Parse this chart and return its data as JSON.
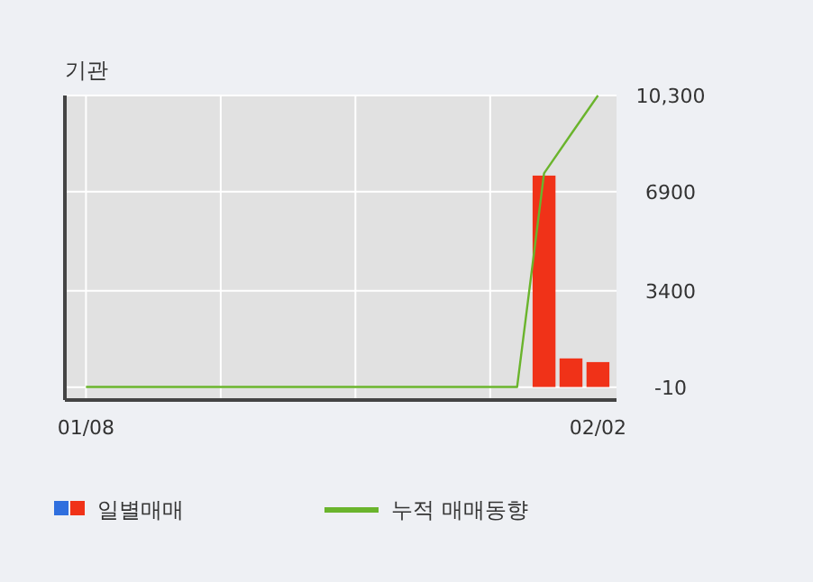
{
  "chart_data": {
    "type": "bar",
    "title": "기관",
    "categories": [
      "01/08",
      null,
      null,
      null,
      null,
      null,
      null,
      null,
      null,
      null,
      null,
      null,
      null,
      null,
      null,
      null,
      null,
      null,
      null,
      "02/02"
    ],
    "series": [
      {
        "name": "일별매매",
        "color": "#f03218",
        "values": [
          0,
          0,
          0,
          0,
          0,
          0,
          0,
          0,
          0,
          0,
          0,
          0,
          0,
          0,
          0,
          0,
          0,
          7470,
          1010,
          880
        ]
      },
      {
        "name": "누적 매매동향",
        "type": "line",
        "color": "#6ab42c",
        "values": [
          0,
          0,
          0,
          0,
          0,
          0,
          0,
          0,
          0,
          0,
          0,
          0,
          0,
          0,
          0,
          0,
          0,
          7550,
          8930,
          10300
        ]
      }
    ],
    "ylim": [
      -460,
      10300
    ],
    "yticks": [
      -10,
      3400,
      6900,
      {
        "value": 10300,
        "label": "10,300"
      }
    ],
    "grid": true,
    "legend": "bottom"
  }
}
